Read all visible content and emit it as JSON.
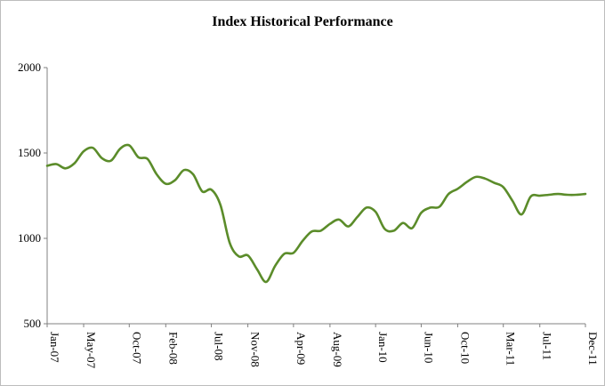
{
  "chart_data": {
    "type": "line",
    "title": "Index Historical Performance",
    "xlabel": "",
    "ylabel": "",
    "ylim": [
      500,
      2000
    ],
    "yticks": [
      500,
      1000,
      1500,
      2000
    ],
    "xlim": [
      "2007-01",
      "2011-12"
    ],
    "xticks": [
      "Jan-07",
      "May-07",
      "Oct-07",
      "Feb-08",
      "Jul-08",
      "Nov-08",
      "Apr-09",
      "Aug-09",
      "Jan-10",
      "Jun-10",
      "Oct-10",
      "Mar-11",
      "Jul-11",
      "Dec-11"
    ],
    "grid": false,
    "legend": "none",
    "line_color": "#5b8c2a",
    "series": [
      {
        "x": [
          "2007-01",
          "2007-02",
          "2007-03",
          "2007-04",
          "2007-05",
          "2007-06",
          "2007-07",
          "2007-08",
          "2007-09",
          "2007-10",
          "2007-11",
          "2007-12",
          "2008-01",
          "2008-02",
          "2008-03",
          "2008-04",
          "2008-05",
          "2008-06",
          "2008-07",
          "2008-08",
          "2008-09",
          "2008-10",
          "2008-11",
          "2008-12",
          "2009-01",
          "2009-02",
          "2009-03",
          "2009-04",
          "2009-05",
          "2009-06",
          "2009-07",
          "2009-08",
          "2009-09",
          "2009-10",
          "2009-11",
          "2009-12",
          "2010-01",
          "2010-02",
          "2010-03",
          "2010-04",
          "2010-05",
          "2010-06",
          "2010-07",
          "2010-08",
          "2010-09",
          "2010-10",
          "2010-11",
          "2010-12",
          "2011-01",
          "2011-02",
          "2011-03",
          "2011-04",
          "2011-05",
          "2011-06",
          "2011-07",
          "2011-08",
          "2011-09",
          "2011-10",
          "2011-11",
          "2011-12"
        ],
        "values": [
          1425,
          1435,
          1410,
          1440,
          1510,
          1530,
          1470,
          1455,
          1525,
          1545,
          1475,
          1465,
          1375,
          1320,
          1340,
          1400,
          1375,
          1275,
          1285,
          1195,
          975,
          895,
          900,
          820,
          745,
          840,
          910,
          915,
          985,
          1040,
          1045,
          1085,
          1110,
          1070,
          1125,
          1180,
          1155,
          1055,
          1045,
          1090,
          1060,
          1150,
          1180,
          1185,
          1260,
          1290,
          1330,
          1360,
          1350,
          1325,
          1300,
          1220,
          1140,
          1245,
          1250,
          1255,
          1260,
          1255,
          1255,
          1260
        ]
      }
    ]
  }
}
